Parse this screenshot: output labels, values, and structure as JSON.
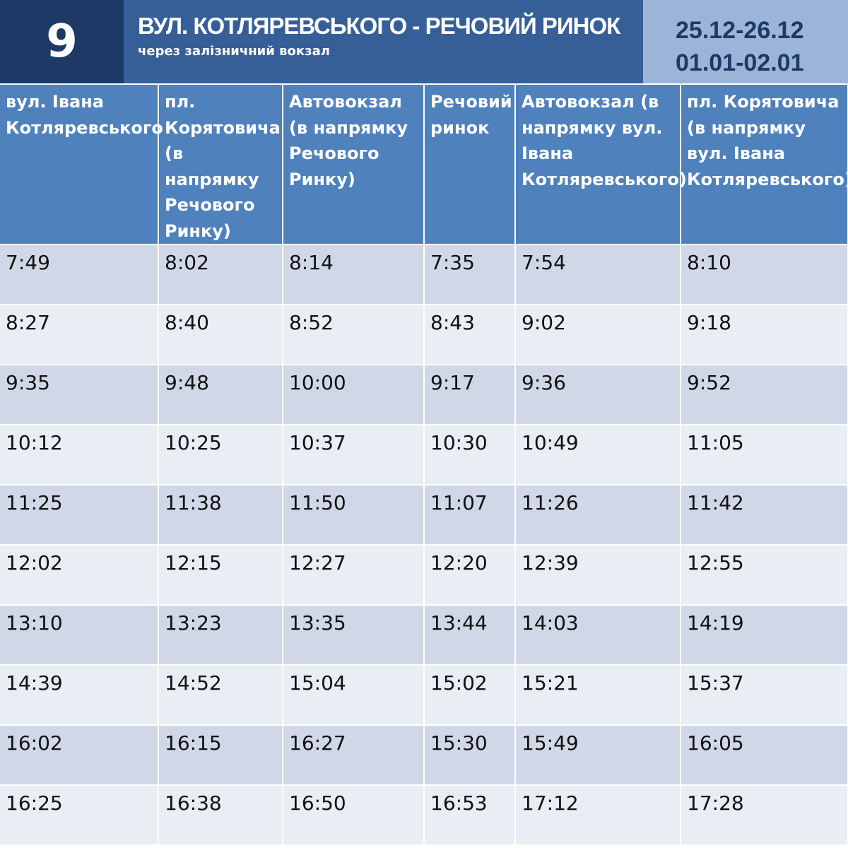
{
  "header": {
    "route": "9",
    "title": "ВУЛ. КОТЛЯРЕВСЬКОГО - РЕЧОВИЙ РИНОК",
    "subtitle": "через залізничний вокзал",
    "dates": [
      "25.12-26.12",
      "01.01-02.01"
    ]
  },
  "table": {
    "columns": [
      "вул. Івана Котляревського",
      "пл. Корятовича (в напрямку Речового Ринку)",
      "Автовокзал (в напрямку Речового Ринку)",
      "Речовий ринок",
      "Автовокзал (в напрямку вул. Івана Котляревського)",
      "пл. Корятовича (в напрямку вул. Івана Котляревського)"
    ],
    "rows": [
      [
        "7:49",
        "8:02",
        "8:14",
        "7:35",
        "7:54",
        "8:10"
      ],
      [
        "8:27",
        "8:40",
        "8:52",
        "8:43",
        "9:02",
        "9:18"
      ],
      [
        "9:35",
        "9:48",
        "10:00",
        "9:17",
        "9:36",
        "9:52"
      ],
      [
        "10:12",
        "10:25",
        "10:37",
        "10:30",
        "10:49",
        "11:05"
      ],
      [
        "11:25",
        "11:38",
        "11:50",
        "11:07",
        "11:26",
        "11:42"
      ],
      [
        "12:02",
        "12:15",
        "12:27",
        "12:20",
        "12:39",
        "12:55"
      ],
      [
        "13:10",
        "13:23",
        "13:35",
        "13:44",
        "14:03",
        "14:19"
      ],
      [
        "14:39",
        "14:52",
        "15:04",
        "15:02",
        "15:21",
        "15:37"
      ],
      [
        "16:02",
        "16:15",
        "16:27",
        "15:30",
        "15:49",
        "16:05"
      ],
      [
        "16:25",
        "16:38",
        "16:50",
        "16:53",
        "17:12",
        "17:28"
      ]
    ]
  }
}
